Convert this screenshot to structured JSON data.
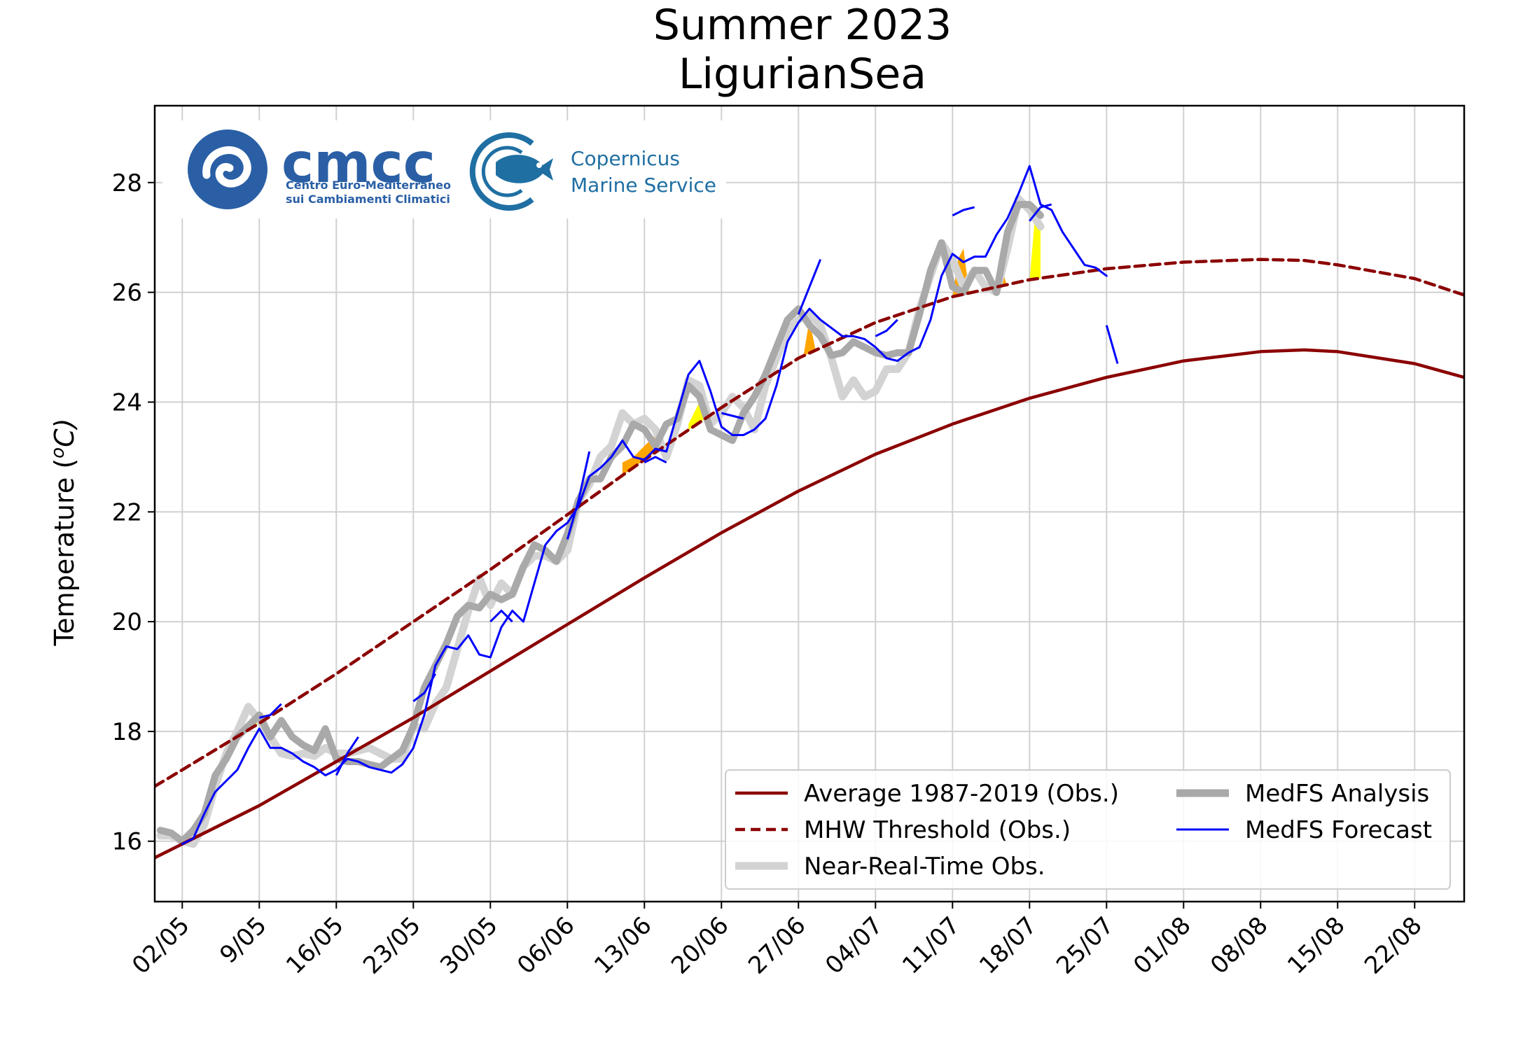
{
  "chart_data": {
    "type": "line",
    "title": "Summer 2023",
    "subtitle": "LigurianSea",
    "xlabel": "",
    "ylabel": "Temperature (",
    "ylabel_sup": "o",
    "ylabel_unit": "C)",
    "xlim_days": [
      -2.5,
      116.5
    ],
    "ylim": [
      14.9,
      29.4
    ],
    "grid": true,
    "x_ticks": [
      {
        "day": 0,
        "label": "02/05"
      },
      {
        "day": 7,
        "label": "9/05"
      },
      {
        "day": 14,
        "label": "16/05"
      },
      {
        "day": 21,
        "label": "23/05"
      },
      {
        "day": 28,
        "label": "30/05"
      },
      {
        "day": 35,
        "label": "06/06"
      },
      {
        "day": 42,
        "label": "13/06"
      },
      {
        "day": 49,
        "label": "20/06"
      },
      {
        "day": 56,
        "label": "27/06"
      },
      {
        "day": 63,
        "label": "04/07"
      },
      {
        "day": 70,
        "label": "11/07"
      },
      {
        "day": 77,
        "label": "18/07"
      },
      {
        "day": 84,
        "label": "25/07"
      },
      {
        "day": 91,
        "label": "01/08"
      },
      {
        "day": 98,
        "label": "08/08"
      },
      {
        "day": 105,
        "label": "15/08"
      },
      {
        "day": 112,
        "label": "22/08"
      }
    ],
    "y_ticks": [
      16,
      18,
      20,
      22,
      24,
      26,
      28
    ],
    "series": [
      {
        "name": "Average 1987-2019 (Obs.)",
        "color": "#8b0000",
        "style": "solid",
        "x": [
          -2.5,
          0,
          7,
          14,
          21,
          28,
          35,
          42,
          49,
          56,
          63,
          70,
          77,
          84,
          91,
          98,
          102,
          105,
          112,
          116.5
        ],
        "y": [
          15.7,
          15.95,
          16.65,
          17.45,
          18.25,
          19.1,
          19.95,
          20.8,
          21.62,
          22.38,
          23.05,
          23.6,
          24.07,
          24.45,
          24.75,
          24.92,
          24.95,
          24.92,
          24.7,
          24.45
        ]
      },
      {
        "name": "MHW Threshold (Obs.)",
        "color": "#8b0000",
        "style": "dashed",
        "x": [
          -2.5,
          0,
          7,
          14,
          21,
          28,
          35,
          42,
          49,
          56,
          63,
          70,
          77,
          84,
          91,
          98,
          102,
          105,
          112,
          116.5
        ],
        "y": [
          17.0,
          17.3,
          18.15,
          19.05,
          20.0,
          20.95,
          21.95,
          22.95,
          23.9,
          24.8,
          25.45,
          25.92,
          26.23,
          26.43,
          26.55,
          26.6,
          26.58,
          26.5,
          26.25,
          25.95
        ]
      },
      {
        "name": "Near-Real-Time Obs.",
        "color": "#d3d3d3",
        "style": "thick",
        "x": [
          -2,
          -1,
          0,
          1,
          2,
          3,
          4,
          5,
          6,
          7,
          8,
          9,
          10,
          11,
          12,
          13,
          14,
          15,
          16,
          17,
          18,
          19,
          20,
          21,
          22,
          23,
          24,
          25,
          26,
          27,
          28,
          29,
          30,
          31,
          32,
          33,
          34,
          35,
          36,
          37,
          38,
          39,
          40,
          41,
          42,
          43,
          44,
          45,
          46,
          47,
          48,
          49,
          50,
          51,
          52,
          53,
          54,
          55,
          56,
          57,
          58,
          59,
          60,
          61,
          62,
          63,
          64,
          65,
          66,
          67,
          68,
          69,
          70,
          71,
          72,
          73,
          74,
          75,
          76,
          77,
          78
        ],
        "y": [
          16.1,
          16.1,
          16.0,
          15.95,
          16.3,
          17.0,
          17.6,
          18.0,
          18.45,
          18.2,
          17.9,
          17.6,
          17.55,
          17.6,
          17.55,
          17.7,
          17.6,
          17.6,
          17.65,
          17.7,
          17.6,
          17.5,
          17.5,
          18.1,
          18.05,
          18.5,
          18.8,
          19.5,
          20.2,
          20.8,
          20.3,
          20.7,
          20.5,
          21.0,
          21.2,
          21.2,
          21.1,
          21.3,
          22.2,
          22.5,
          23.0,
          23.2,
          23.8,
          23.6,
          23.7,
          23.5,
          23.0,
          23.6,
          24.4,
          24.3,
          23.6,
          23.8,
          24.1,
          23.9,
          23.5,
          24.3,
          24.8,
          25.3,
          25.5,
          25.6,
          25.4,
          24.8,
          24.1,
          24.4,
          24.1,
          24.2,
          24.6,
          24.6,
          24.9,
          25.7,
          26.3,
          26.9,
          26.6,
          26.1,
          26.4,
          26.1,
          26.0,
          26.8,
          27.7,
          27.5,
          27.2
        ]
      },
      {
        "name": "MedFS Analysis",
        "color": "#a9a9a9",
        "style": "thick",
        "x": [
          -2,
          -1,
          0,
          1,
          2,
          3,
          4,
          5,
          6,
          7,
          8,
          9,
          10,
          11,
          12,
          13,
          14,
          15,
          16,
          17,
          18,
          19,
          20,
          21,
          22,
          23,
          24,
          25,
          26,
          27,
          28,
          29,
          30,
          31,
          32,
          33,
          34,
          35,
          36,
          37,
          38,
          39,
          40,
          41,
          42,
          43,
          44,
          45,
          46,
          47,
          48,
          49,
          50,
          51,
          52,
          53,
          54,
          55,
          56,
          57,
          58,
          59,
          60,
          61,
          62,
          63,
          64,
          65,
          66,
          67,
          68,
          69,
          70,
          71,
          72,
          73,
          74,
          75,
          76,
          77,
          78
        ],
        "y": [
          16.2,
          16.15,
          16.0,
          16.2,
          16.5,
          17.2,
          17.5,
          17.9,
          18.1,
          18.3,
          17.9,
          18.2,
          17.9,
          17.75,
          17.65,
          18.05,
          17.5,
          17.45,
          17.45,
          17.4,
          17.35,
          17.5,
          17.65,
          18.1,
          18.8,
          19.2,
          19.6,
          20.1,
          20.3,
          20.25,
          20.5,
          20.4,
          20.5,
          21.0,
          21.4,
          21.3,
          21.1,
          21.6,
          22.2,
          22.6,
          22.6,
          23.0,
          23.2,
          23.6,
          23.5,
          23.2,
          23.6,
          23.7,
          24.3,
          24.1,
          23.5,
          23.4,
          23.3,
          23.8,
          24.1,
          24.5,
          25.0,
          25.5,
          25.7,
          25.4,
          25.2,
          24.85,
          24.9,
          25.1,
          25.0,
          24.9,
          24.85,
          24.9,
          24.9,
          25.6,
          26.4,
          26.9,
          26.1,
          26.0,
          26.4,
          26.4,
          26.0,
          27.1,
          27.6,
          27.6,
          27.4
        ]
      },
      {
        "name": "MedFS Forecast",
        "color": "#0000ff",
        "style": "thin",
        "x": [
          0,
          1,
          2,
          3,
          4,
          5,
          6,
          7,
          8,
          9,
          10,
          11,
          12,
          13,
          14,
          15,
          16,
          17,
          18,
          19,
          20,
          21,
          22,
          23,
          24,
          25,
          26,
          27,
          28,
          29,
          30,
          31,
          32,
          33,
          34,
          35,
          36,
          37,
          38,
          39,
          40,
          41,
          42,
          43,
          44,
          45,
          46,
          47,
          48,
          49,
          50,
          51,
          52,
          53,
          54,
          55,
          56,
          57,
          58,
          59,
          60,
          61,
          62,
          63,
          64,
          65,
          66,
          67,
          68,
          69,
          70,
          71,
          72,
          73,
          74,
          75,
          76,
          77,
          78,
          79,
          80,
          81,
          82,
          83,
          84
        ],
        "y": [
          15.95,
          16.05,
          16.5,
          16.9,
          17.1,
          17.3,
          17.7,
          18.05,
          17.7,
          17.7,
          17.6,
          17.45,
          17.35,
          17.2,
          17.3,
          17.5,
          17.45,
          17.35,
          17.3,
          17.25,
          17.4,
          17.7,
          18.3,
          19.2,
          19.55,
          19.5,
          19.75,
          19.4,
          19.35,
          19.9,
          20.2,
          20.0,
          20.7,
          21.4,
          21.65,
          21.8,
          22.1,
          22.65,
          22.8,
          23.0,
          23.3,
          23.0,
          22.95,
          23.15,
          23.1,
          23.8,
          24.5,
          24.75,
          24.2,
          23.55,
          23.4,
          23.4,
          23.5,
          23.7,
          24.3,
          25.1,
          25.45,
          25.7,
          25.5,
          25.35,
          25.2,
          25.2,
          25.15,
          25.0,
          24.8,
          24.75,
          24.9,
          25.0,
          25.5,
          26.3,
          26.7,
          26.55,
          26.65,
          26.65,
          27.05,
          27.35,
          27.8,
          28.3,
          27.6,
          27.5,
          27.1,
          26.8,
          26.5,
          26.45,
          26.3
        ]
      }
    ],
    "forecast_segments": [
      {
        "x": [
          7,
          8,
          9
        ],
        "y": [
          18.25,
          18.3,
          18.5
        ]
      },
      {
        "x": [
          14,
          15,
          16
        ],
        "y": [
          17.2,
          17.6,
          17.9
        ]
      },
      {
        "x": [
          21,
          22,
          23
        ],
        "y": [
          18.55,
          18.7,
          19.05
        ]
      },
      {
        "x": [
          28,
          29,
          30
        ],
        "y": [
          20.0,
          20.2,
          20.0
        ]
      },
      {
        "x": [
          35,
          36,
          37
        ],
        "y": [
          21.5,
          22.2,
          23.1
        ]
      },
      {
        "x": [
          42,
          43,
          44
        ],
        "y": [
          22.9,
          23.0,
          22.9
        ]
      },
      {
        "x": [
          49,
          50,
          51
        ],
        "y": [
          23.8,
          23.75,
          23.7
        ]
      },
      {
        "x": [
          56,
          57,
          58
        ],
        "y": [
          25.6,
          26.1,
          26.6
        ]
      },
      {
        "x": [
          63,
          64,
          65
        ],
        "y": [
          25.2,
          25.3,
          25.5
        ]
      },
      {
        "x": [
          70,
          71,
          72
        ],
        "y": [
          27.4,
          27.5,
          27.55
        ]
      },
      {
        "x": [
          77,
          78,
          79
        ],
        "y": [
          27.3,
          27.55,
          27.6
        ]
      },
      {
        "x": [
          84,
          85
        ],
        "y": [
          25.4,
          24.7
        ]
      }
    ],
    "mhw_fills": [
      {
        "x": [
          6.3,
          7,
          7.6
        ],
        "y": [
          18.2,
          18.3,
          18.3
        ],
        "color": "#ffff00"
      },
      {
        "x": [
          40,
          41,
          42,
          43
        ],
        "y": [
          22.9,
          23.0,
          23.2,
          23.4
        ],
        "color": "#ffa500"
      },
      {
        "x": [
          46,
          47,
          48
        ],
        "y": [
          23.6,
          24.0,
          23.7
        ],
        "color": "#ffff00"
      },
      {
        "x": [
          56.5,
          57,
          57.5
        ],
        "y": [
          24.9,
          25.5,
          25.0
        ],
        "color": "#ffa500"
      },
      {
        "x": [
          70,
          70.5,
          71,
          71.5
        ],
        "y": [
          25.9,
          26.6,
          26.8,
          26.0
        ],
        "color": "#ffa500"
      },
      {
        "x": [
          74,
          74.5,
          75
        ],
        "y": [
          26.05,
          26.4,
          26.1
        ],
        "color": "#ffa500"
      },
      {
        "x": [
          77,
          77.5,
          78
        ],
        "y": [
          26.2,
          27.4,
          27.5
        ],
        "color": "#ffff00"
      }
    ],
    "legend": {
      "location": "lower-right",
      "entries": [
        {
          "label": "Average 1987-2019 (Obs.)",
          "series": 0
        },
        {
          "label": "MHW Threshold (Obs.)",
          "series": 1
        },
        {
          "label": "Near-Real-Time Obs.",
          "series": 2
        },
        {
          "label": "MedFS Analysis",
          "series": 3
        },
        {
          "label": "MedFS Forecast",
          "series": 4
        }
      ]
    }
  },
  "logos": {
    "cmcc": {
      "name": "cmcc",
      "line1": "Centro Euro-Mediterraneo",
      "line2": "sui Cambiamenti Climatici",
      "color": "#2a5fa5"
    },
    "copernicus": {
      "line1": "Copernicus",
      "line2": "Marine Service",
      "color": "#1f6fa3"
    }
  }
}
